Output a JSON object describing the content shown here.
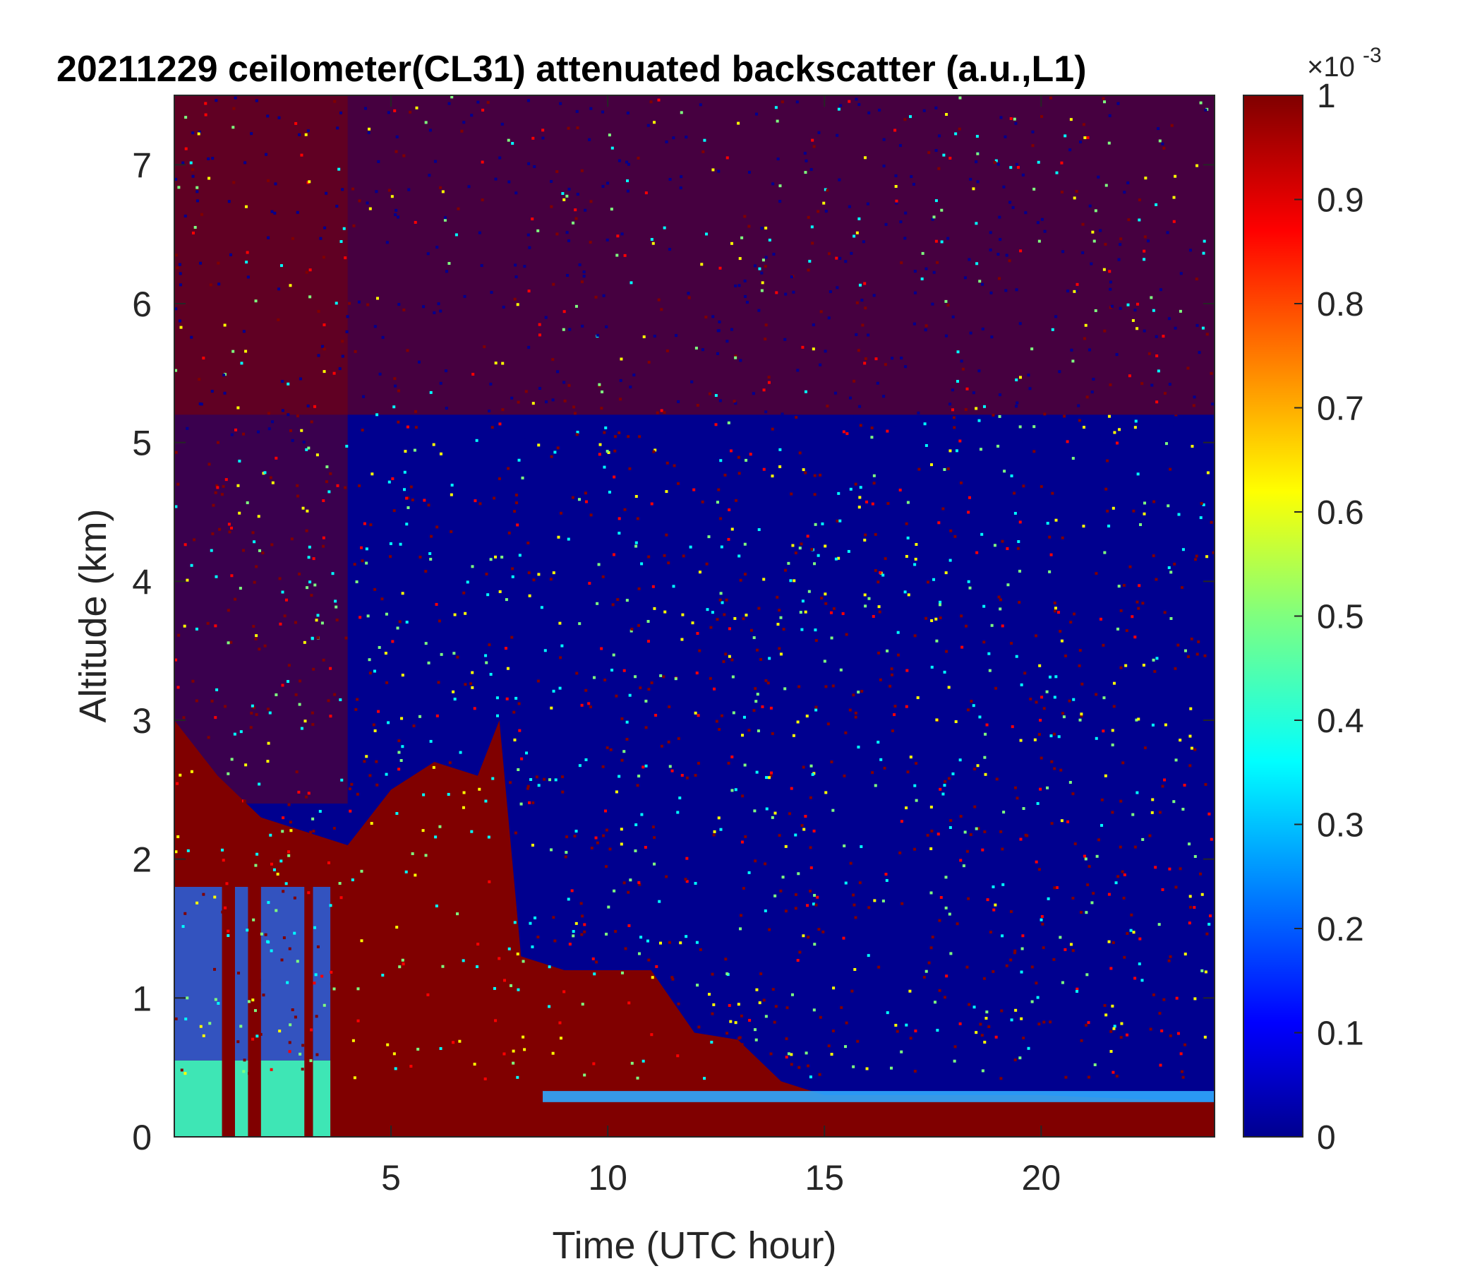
{
  "chart_data": {
    "type": "heatmap",
    "title": "20211229 ceilometer(CL31) attenuated backscatter (a.u.,L1)",
    "xlabel": "Time (UTC hour)",
    "ylabel": "Altitude (km)",
    "xlim": [
      0,
      24
    ],
    "ylim": [
      0,
      7.5
    ],
    "xticks": [
      5,
      10,
      15,
      20
    ],
    "yticks": [
      0,
      1,
      2,
      3,
      4,
      5,
      6,
      7
    ],
    "colormap": "jet",
    "colorbar": {
      "clim": [
        0,
        1
      ],
      "ticks": [
        0,
        0.1,
        0.2,
        0.3,
        0.4,
        0.5,
        0.6,
        0.7,
        0.8,
        0.9,
        1
      ],
      "exponent_label": "×10",
      "exponent": "-3"
    },
    "features": {
      "boundary_layer_top_km": [
        [
          0.0,
          3.0
        ],
        [
          1.0,
          2.6
        ],
        [
          2.0,
          2.3
        ],
        [
          3.0,
          2.2
        ],
        [
          4.0,
          2.1
        ],
        [
          5.0,
          2.5
        ],
        [
          6.0,
          2.7
        ],
        [
          7.0,
          2.6
        ],
        [
          7.5,
          3.0
        ],
        [
          8.0,
          1.3
        ],
        [
          9.0,
          1.2
        ],
        [
          10.0,
          1.2
        ],
        [
          11.0,
          1.2
        ],
        [
          12.0,
          0.75
        ],
        [
          13.0,
          0.7
        ],
        [
          14.0,
          0.4
        ],
        [
          15.0,
          0.3
        ],
        [
          20.0,
          0.3
        ],
        [
          24.0,
          0.25
        ]
      ]
    }
  },
  "colors": {
    "dark_red": "#800000",
    "dark_blue": "#00008f",
    "axis": "#262626"
  }
}
